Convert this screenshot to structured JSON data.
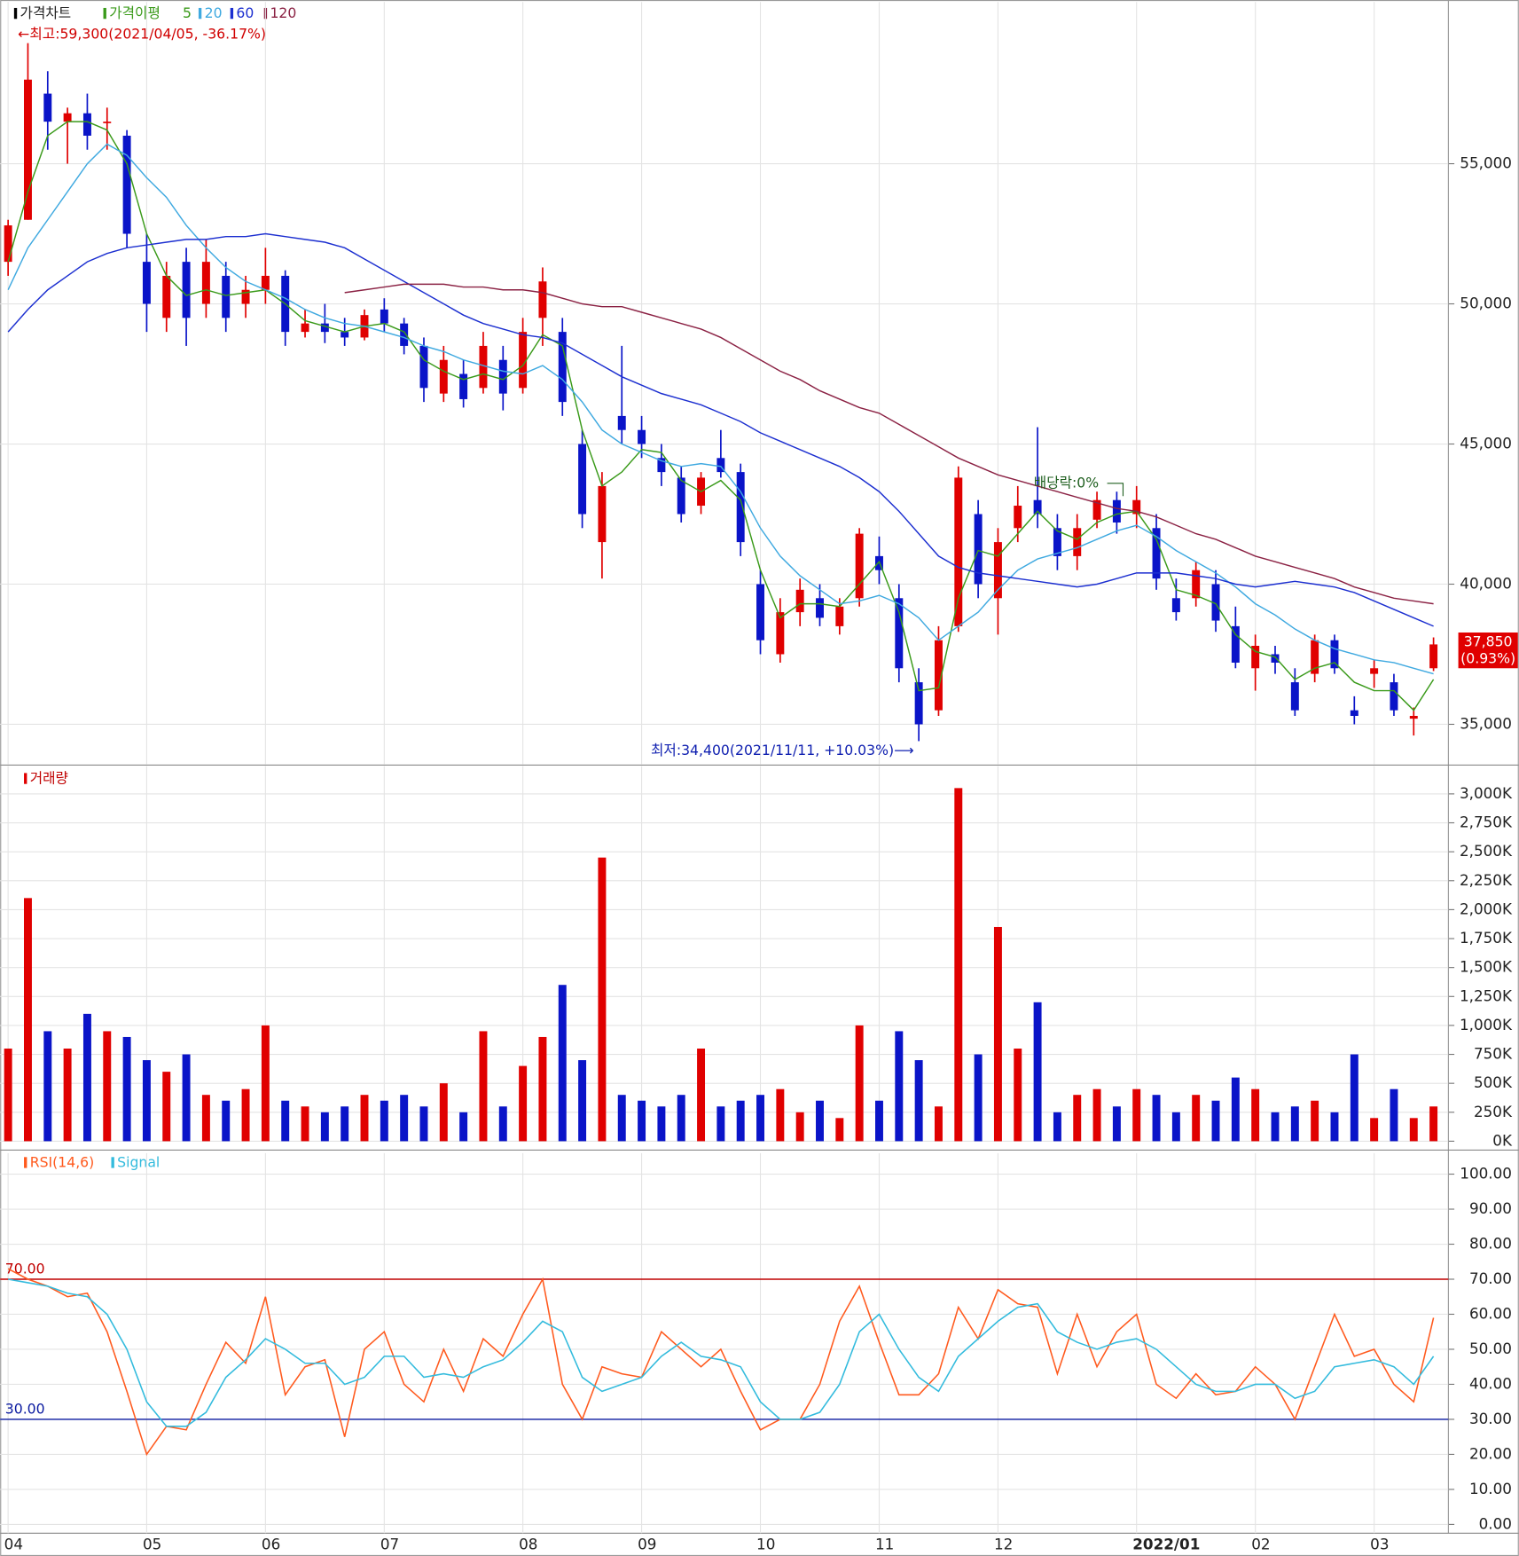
{
  "chart_data": {
    "type": "candlestick",
    "title": "가격차트",
    "ma_title": "가격이평",
    "categories": [
      "04",
      null,
      null,
      null,
      null,
      null,
      null,
      "05",
      null,
      null,
      null,
      null,
      null,
      "06",
      null,
      null,
      null,
      null,
      null,
      "07",
      null,
      null,
      null,
      null,
      null,
      null,
      "08",
      null,
      null,
      null,
      null,
      null,
      "09",
      null,
      null,
      null,
      null,
      null,
      "10",
      null,
      null,
      null,
      null,
      null,
      "11",
      null,
      null,
      null,
      null,
      null,
      "12",
      null,
      null,
      null,
      null,
      null,
      null,
      "2022/01",
      null,
      null,
      null,
      null,
      null,
      "02",
      null,
      null,
      null,
      null,
      null,
      "03",
      null,
      null,
      null
    ],
    "open": [
      51500,
      53000,
      57500,
      56500,
      56800,
      56500,
      56000,
      51500,
      49500,
      51500,
      50000,
      51000,
      50000,
      50500,
      51000,
      49000,
      49300,
      49000,
      48800,
      49800,
      49300,
      48500,
      46800,
      47500,
      47000,
      48000,
      47000,
      49500,
      49000,
      45000,
      41500,
      46000,
      45500,
      44500,
      43800,
      42800,
      44500,
      44000,
      40000,
      37500,
      39000,
      39500,
      38500,
      39500,
      41000,
      39500,
      36500,
      35500,
      38500,
      42500,
      39500,
      42000,
      43000,
      42000,
      41000,
      42300,
      43000,
      42500,
      42000,
      39500,
      39500,
      40000,
      38500,
      37000,
      37500,
      36500,
      36800,
      38000,
      35500,
      36800,
      36500,
      35200,
      37000
    ],
    "high": [
      53000,
      59300,
      58300,
      57000,
      57500,
      57000,
      56200,
      52500,
      51500,
      52000,
      52300,
      51500,
      51000,
      52000,
      51200,
      49800,
      50000,
      49500,
      49800,
      50200,
      49500,
      48800,
      48500,
      48000,
      49000,
      48500,
      49500,
      51300,
      49500,
      45500,
      44000,
      48500,
      46000,
      45000,
      44200,
      44000,
      45500,
      44300,
      40500,
      39500,
      40200,
      40000,
      39500,
      42000,
      41700,
      40000,
      37000,
      38500,
      44200,
      43000,
      42000,
      43500,
      45600,
      42500,
      42500,
      43300,
      43300,
      43500,
      42500,
      40200,
      40800,
      40500,
      39200,
      38200,
      37800,
      37000,
      38200,
      38200,
      36000,
      37300,
      36800,
      35600,
      38100
    ],
    "low": [
      51000,
      53000,
      55500,
      55000,
      55500,
      55500,
      52000,
      49000,
      49000,
      48500,
      49500,
      49000,
      49500,
      50000,
      48500,
      48800,
      48600,
      48500,
      48700,
      49000,
      48200,
      46500,
      46500,
      46300,
      46800,
      46200,
      46800,
      48500,
      46000,
      42000,
      40200,
      45000,
      44500,
      43500,
      42200,
      42500,
      43800,
      41000,
      37500,
      37200,
      38500,
      38500,
      38200,
      39200,
      40000,
      36500,
      34400,
      35300,
      38300,
      39500,
      38200,
      41500,
      42000,
      40500,
      40500,
      42000,
      41800,
      42000,
      39800,
      38700,
      39200,
      38300,
      37000,
      36200,
      36800,
      35300,
      36500,
      36800,
      35000,
      36300,
      35300,
      34600,
      36900
    ],
    "close": [
      52800,
      58000,
      56500,
      56800,
      56000,
      56500,
      52500,
      50000,
      51000,
      49500,
      51500,
      49500,
      50500,
      51000,
      49000,
      49300,
      49000,
      48800,
      49600,
      49300,
      48500,
      47000,
      48000,
      46600,
      48500,
      46800,
      49000,
      50800,
      46500,
      42500,
      43500,
      45500,
      45000,
      44000,
      42500,
      43800,
      44000,
      41500,
      38000,
      39000,
      39800,
      38800,
      39200,
      41800,
      40500,
      37000,
      35000,
      38000,
      43800,
      40000,
      41500,
      42800,
      42500,
      41000,
      42000,
      43000,
      42200,
      43000,
      40200,
      39000,
      40500,
      38700,
      37200,
      37800,
      37200,
      35500,
      38000,
      37000,
      35300,
      37000,
      35500,
      35300,
      37850
    ],
    "up_color": "#e00000",
    "down_color": "#0a14c8",
    "moving_averages": [
      {
        "name": "5",
        "color": "#3a9a1a",
        "values": [
          51500,
          54000,
          56000,
          56500,
          56500,
          56200,
          55000,
          52500,
          51000,
          50300,
          50500,
          50300,
          50400,
          50500,
          50000,
          49400,
          49200,
          49000,
          49200,
          49300,
          49000,
          48000,
          47600,
          47300,
          47500,
          47300,
          47800,
          48900,
          48500,
          45500,
          43500,
          44000,
          44800,
          44700,
          43700,
          43300,
          43700,
          43000,
          40500,
          38800,
          39300,
          39300,
          39200,
          40000,
          40800,
          39000,
          36200,
          36300,
          39500,
          41200,
          41000,
          41800,
          42600,
          41900,
          41600,
          42200,
          42500,
          42600,
          41600,
          39800,
          39600,
          39300,
          38200,
          37600,
          37400,
          36600,
          37000,
          37200,
          36500,
          36200,
          36200,
          35500,
          36600
        ]
      },
      {
        "name": "20",
        "color": "#3fa9e0",
        "values": [
          50500,
          52000,
          53000,
          54000,
          55000,
          55700,
          55300,
          54500,
          53800,
          52800,
          52000,
          51300,
          50800,
          50500,
          50200,
          49800,
          49500,
          49300,
          49200,
          49000,
          48800,
          48500,
          48300,
          48000,
          47800,
          47600,
          47500,
          47800,
          47300,
          46500,
          45500,
          45000,
          44700,
          44400,
          44200,
          44300,
          44200,
          43300,
          42000,
          41000,
          40300,
          39800,
          39300,
          39400,
          39600,
          39300,
          38800,
          38000,
          38500,
          39000,
          39800,
          40500,
          40900,
          41100,
          41300,
          41600,
          41900,
          42100,
          41700,
          41200,
          40800,
          40400,
          39900,
          39300,
          38900,
          38400,
          38000,
          37700,
          37500,
          37300,
          37200,
          37000,
          36800
        ]
      },
      {
        "name": "60",
        "color": "#1c2fd0",
        "values": [
          49000,
          49800,
          50500,
          51000,
          51500,
          51800,
          52000,
          52100,
          52200,
          52300,
          52300,
          52400,
          52400,
          52500,
          52400,
          52300,
          52200,
          52000,
          51600,
          51200,
          50800,
          50400,
          50000,
          49600,
          49300,
          49100,
          48900,
          48800,
          48600,
          48200,
          47800,
          47400,
          47100,
          46800,
          46600,
          46400,
          46100,
          45800,
          45400,
          45100,
          44800,
          44500,
          44200,
          43800,
          43300,
          42600,
          41800,
          41000,
          40600,
          40400,
          40300,
          40200,
          40100,
          40000,
          39900,
          40000,
          40200,
          40400,
          40400,
          40400,
          40300,
          40200,
          40000,
          39900,
          40000,
          40100,
          40000,
          39900,
          39700,
          39400,
          39100,
          38800,
          38500
        ]
      },
      {
        "name": "120",
        "color": "#8b2244",
        "values": [
          null,
          null,
          null,
          null,
          null,
          null,
          null,
          null,
          null,
          null,
          null,
          null,
          null,
          null,
          null,
          null,
          null,
          50400,
          50500,
          50600,
          50700,
          50700,
          50700,
          50600,
          50600,
          50500,
          50500,
          50400,
          50200,
          50000,
          49900,
          49900,
          49700,
          49500,
          49300,
          49100,
          48800,
          48400,
          48000,
          47600,
          47300,
          46900,
          46600,
          46300,
          46100,
          45700,
          45300,
          44900,
          44500,
          44200,
          43900,
          43700,
          43500,
          43300,
          43100,
          42900,
          42700,
          42600,
          42400,
          42100,
          41800,
          41600,
          41300,
          41000,
          40800,
          40600,
          40400,
          40200,
          39900,
          39700,
          39500,
          39400,
          39300
        ]
      }
    ],
    "ylim": [
      33580,
      60770
    ],
    "yticks": [
      {
        "value": 35000,
        "label": "35,000"
      },
      {
        "value": 40000,
        "label": "40,000"
      },
      {
        "value": 45000,
        "label": "45,000"
      },
      {
        "value": 50000,
        "label": "50,000"
      },
      {
        "value": 55000,
        "label": "55,000"
      }
    ],
    "annotations": [
      {
        "text": "←최고:59,300(2021/04/05, -36.17%)",
        "color": "#d00000"
      },
      {
        "text": "최저:34,400(2021/11/11, +10.03%)⟶",
        "color": "#1020b0"
      },
      {
        "text": "배당락:0%",
        "color": "#206020"
      }
    ],
    "last_price": {
      "value": 37850,
      "label": "37,850"
    },
    "last_change": {
      "value": 0.93,
      "label": "(0.93%)"
    },
    "volume": {
      "title": "거래량",
      "values": [
        800000,
        2100000,
        950000,
        800000,
        1100000,
        950000,
        900000,
        700000,
        600000,
        750000,
        400000,
        350000,
        450000,
        1000000,
        350000,
        300000,
        250000,
        300000,
        400000,
        350000,
        400000,
        300000,
        500000,
        250000,
        950000,
        300000,
        650000,
        900000,
        1350000,
        700000,
        2450000,
        400000,
        350000,
        300000,
        400000,
        800000,
        300000,
        350000,
        400000,
        450000,
        250000,
        350000,
        200000,
        1000000,
        350000,
        950000,
        700000,
        300000,
        3050000,
        750000,
        1850000,
        800000,
        1200000,
        250000,
        400000,
        450000,
        300000,
        450000,
        400000,
        250000,
        400000,
        350000,
        550000,
        450000,
        250000,
        300000,
        350000,
        250000,
        750000,
        200000,
        450000,
        200000,
        300000
      ],
      "ylim": [
        0,
        3240000
      ],
      "yticks": [
        {
          "value": 0,
          "label": "0K"
        },
        {
          "value": 250000,
          "label": "250K"
        },
        {
          "value": 500000,
          "label": "500K"
        },
        {
          "value": 750000,
          "label": "750K"
        },
        {
          "value": 1000000,
          "label": "1,000K"
        },
        {
          "value": 1250000,
          "label": "1,250K"
        },
        {
          "value": 1500000,
          "label": "1,500K"
        },
        {
          "value": 1750000,
          "label": "1,750K"
        },
        {
          "value": 2000000,
          "label": "2,000K"
        },
        {
          "value": 2250000,
          "label": "2,250K"
        },
        {
          "value": 2500000,
          "label": "2,500K"
        },
        {
          "value": 2750000,
          "label": "2,750K"
        },
        {
          "value": 3000000,
          "label": "3,000K"
        }
      ]
    },
    "rsi": {
      "series": [
        {
          "name": "RSI(14,6)",
          "color": "#ff5a1e",
          "values": [
            73,
            70,
            68,
            65,
            66,
            55,
            38,
            20,
            28,
            27,
            40,
            52,
            46,
            65,
            37,
            45,
            47,
            25,
            50,
            55,
            40,
            35,
            50,
            38,
            53,
            48,
            60,
            70,
            40,
            30,
            45,
            43,
            42,
            55,
            50,
            45,
            50,
            38,
            27,
            30,
            30,
            40,
            58,
            68,
            52,
            37,
            37,
            43,
            62,
            53,
            67,
            63,
            62,
            43,
            60,
            45,
            55,
            60,
            40,
            36,
            43,
            37,
            38,
            45,
            40,
            30,
            45,
            60,
            48,
            50,
            40,
            35,
            59
          ]
        },
        {
          "name": "Signal",
          "color": "#33bbdd",
          "values": [
            70,
            69,
            68,
            66,
            65,
            60,
            50,
            35,
            28,
            28,
            32,
            42,
            47,
            53,
            50,
            46,
            46,
            40,
            42,
            48,
            48,
            42,
            43,
            42,
            45,
            47,
            52,
            58,
            55,
            42,
            38,
            40,
            42,
            48,
            52,
            48,
            47,
            45,
            35,
            30,
            30,
            32,
            40,
            55,
            60,
            50,
            42,
            38,
            48,
            53,
            58,
            62,
            63,
            55,
            52,
            50,
            52,
            53,
            50,
            45,
            40,
            38,
            38,
            40,
            40,
            36,
            38,
            45,
            46,
            47,
            45,
            40,
            48
          ]
        }
      ],
      "levels": [
        {
          "value": 70,
          "label": "70.00",
          "color": "#c00000"
        },
        {
          "value": 30,
          "label": "30.00",
          "color": "#0a1aa0"
        }
      ],
      "ylim": [
        -2.5,
        106
      ],
      "yticks": [
        {
          "value": 0,
          "label": "0.00"
        },
        {
          "value": 10,
          "label": "10.00"
        },
        {
          "value": 20,
          "label": "20.00"
        },
        {
          "value": 30,
          "label": "30.00"
        },
        {
          "value": 40,
          "label": "40.00"
        },
        {
          "value": 50,
          "label": "50.00"
        },
        {
          "value": 60,
          "label": "60.00"
        },
        {
          "value": 70,
          "label": "70.00"
        },
        {
          "value": 80,
          "label": "80.00"
        },
        {
          "value": 90,
          "label": "90.00"
        },
        {
          "value": 100,
          "label": "100.00"
        }
      ]
    },
    "grid": true
  }
}
